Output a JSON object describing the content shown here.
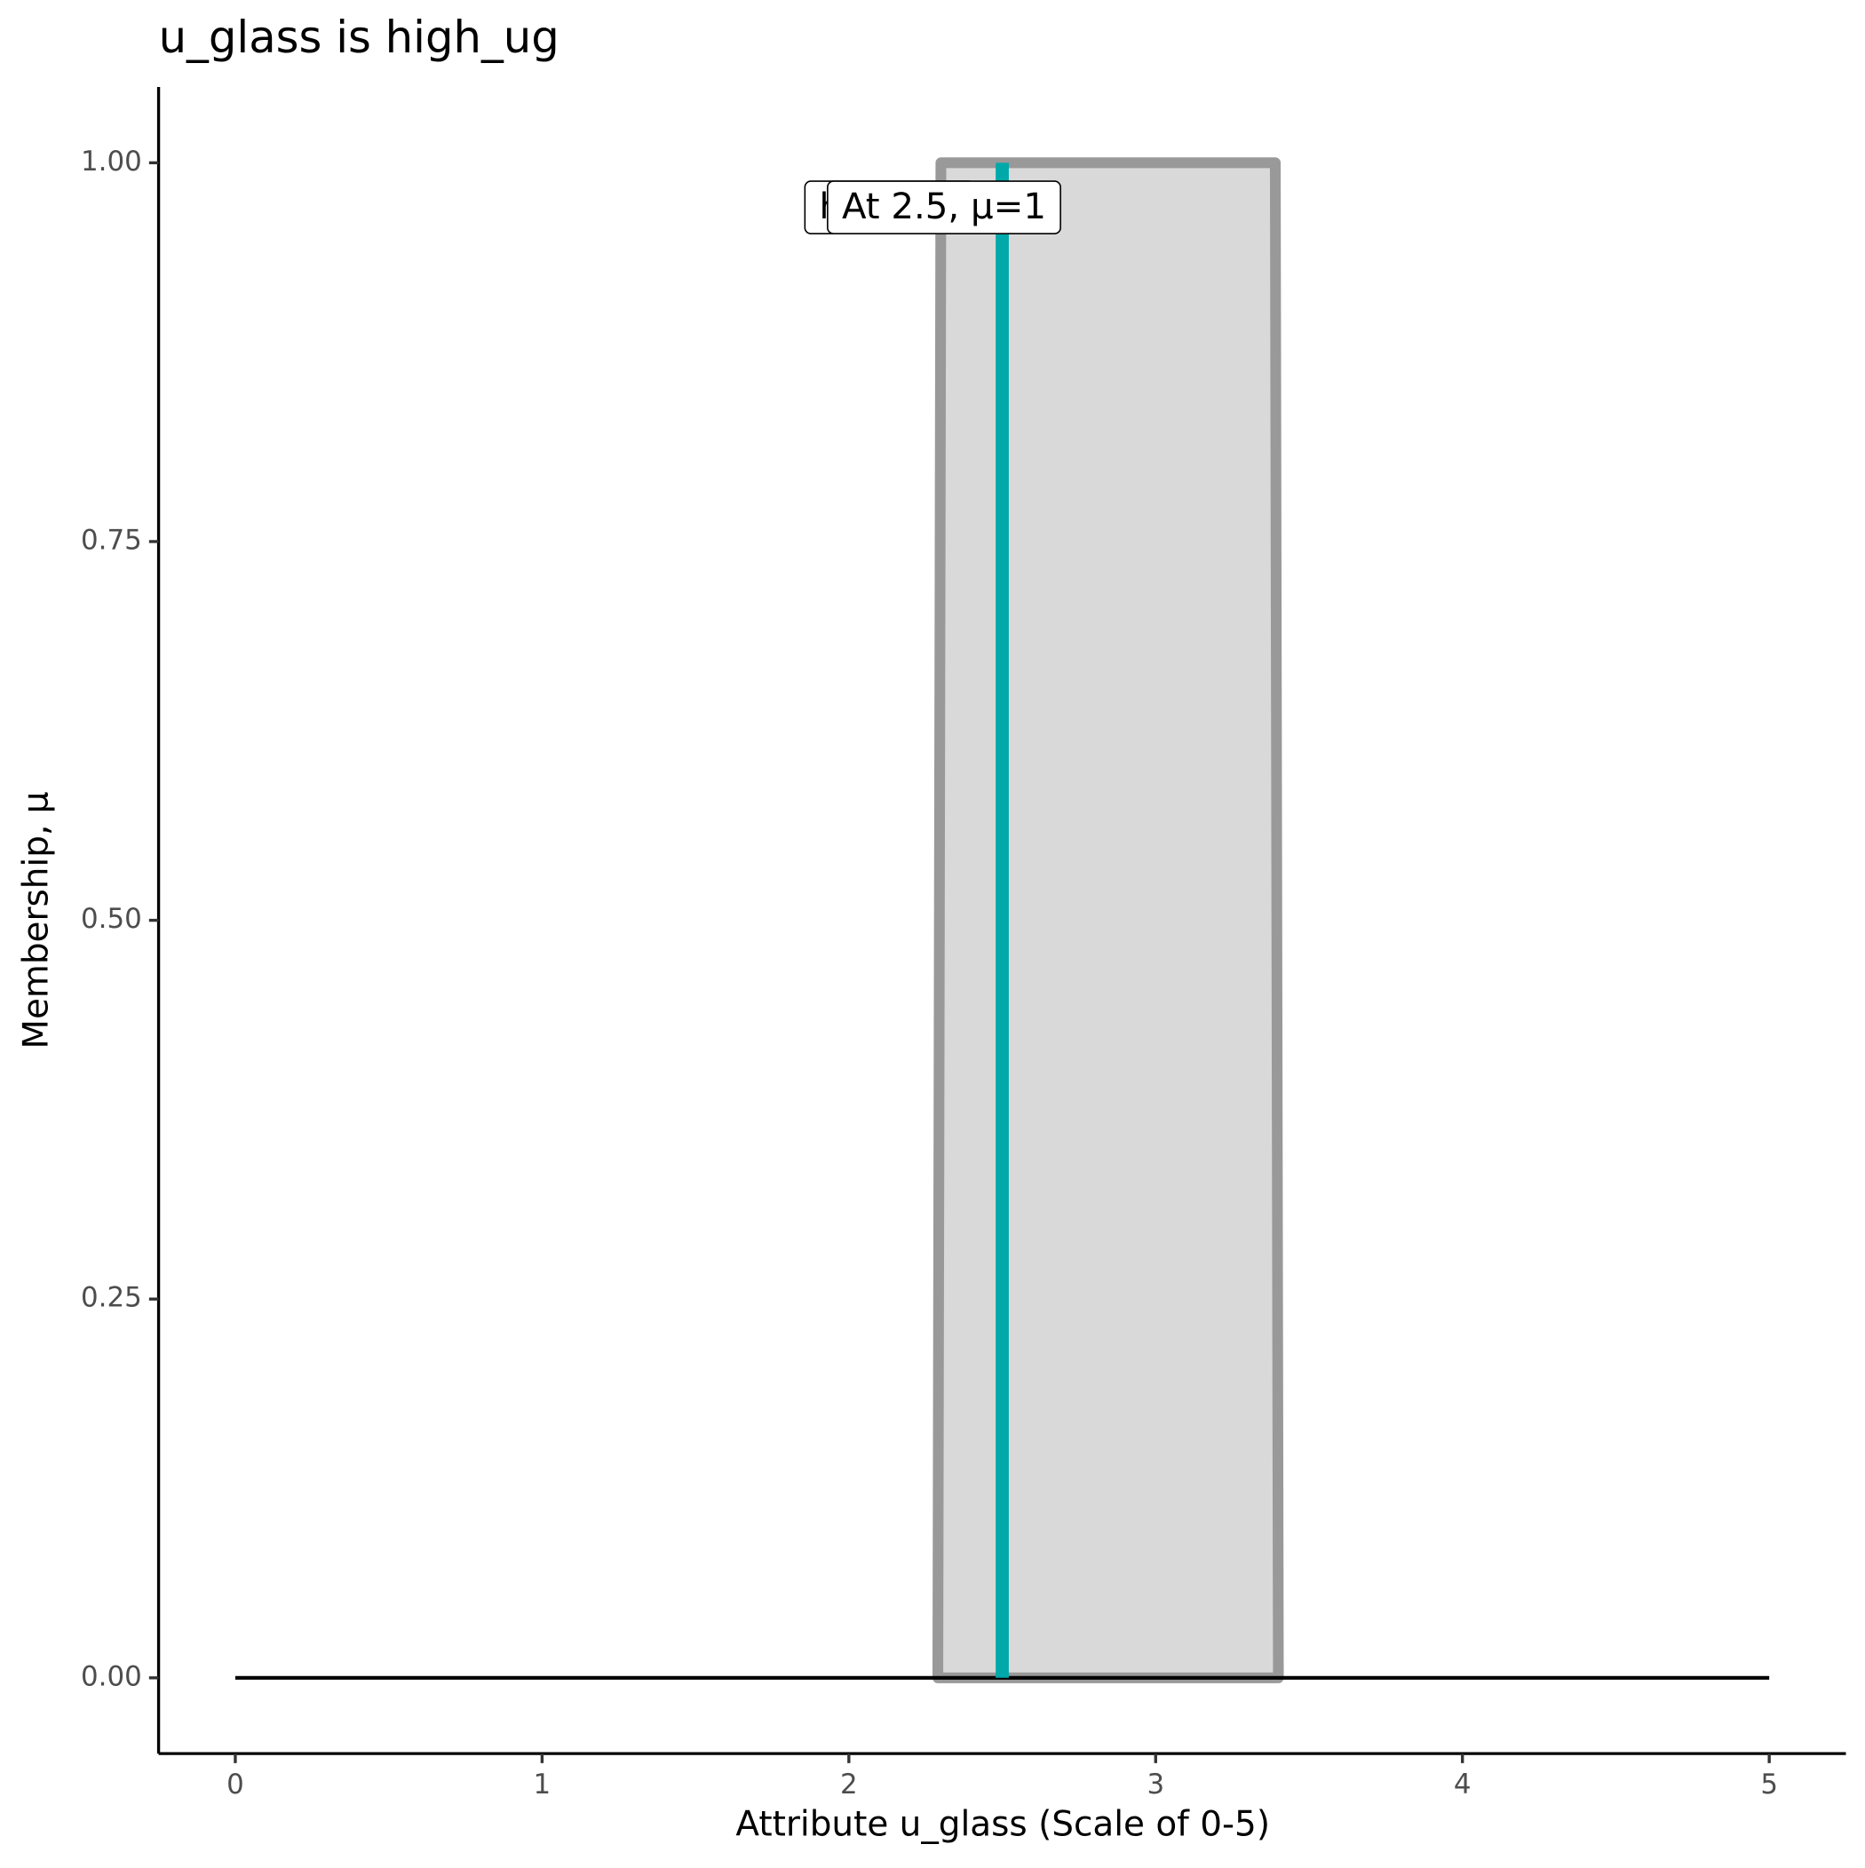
{
  "chart_data": {
    "type": "area",
    "title": "u_glass is high_ug",
    "xlabel": "Attribute u_glass (Scale of 0-5)",
    "ylabel": "Membership, μ",
    "xlim": [
      -0.25,
      5.25
    ],
    "ylim": [
      -0.05,
      1.05
    ],
    "xticks": [
      0,
      1,
      2,
      3,
      4,
      5
    ],
    "yticks": [
      {
        "value": 0,
        "label": "0.00"
      },
      {
        "value": 0.25,
        "label": "0.25"
      },
      {
        "value": 0.5,
        "label": "0.50"
      },
      {
        "value": 0.75,
        "label": "0.75"
      },
      {
        "value": 1,
        "label": "1.00"
      }
    ],
    "series": [
      {
        "type": "area",
        "x": [
          2.29,
          2.3,
          3.39,
          3.4
        ],
        "values": [
          0,
          1,
          1,
          0
        ],
        "color": "#999999",
        "fill": "#d9d9d9"
      },
      {
        "type": "line",
        "x": [
          0,
          5
        ],
        "values": [
          0,
          0
        ],
        "color": "#000000"
      },
      {
        "type": "line",
        "x": [
          2.5,
          2.5
        ],
        "values": [
          0,
          1
        ],
        "color": "#00a9a9"
      }
    ],
    "annotations": [
      "high_ug",
      "At 2.5, μ=1"
    ]
  }
}
